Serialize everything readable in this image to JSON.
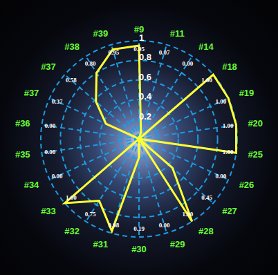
{
  "chart_data": {
    "type": "radar",
    "categories": [
      "#9",
      "#11",
      "#14",
      "#18",
      "#19",
      "#20",
      "#25",
      "#26",
      "#27",
      "#28",
      "#29",
      "#30",
      "#31",
      "#32",
      "#33",
      "#34",
      "#35",
      "#36",
      "#37",
      "#37",
      "#38",
      "#39"
    ],
    "values": [
      0.95,
      0.07,
      0.0,
      1.0,
      1.0,
      1.0,
      1.0,
      0.0,
      0.45,
      1.0,
      0.0,
      0.19,
      0.98,
      0.75,
      1.0,
      0.0,
      0.0,
      0.0,
      0.37,
      0.58,
      0.8,
      0.95
    ],
    "value_labels": [
      "0.95",
      "0.07",
      "0.00",
      "1.00",
      "1.00",
      "1.00",
      "1.00",
      "0.00",
      "0.45",
      "1.00",
      "0.00",
      "0.19",
      "0.98",
      "0.75",
      "1.00",
      "0.00",
      "0.00",
      "0.00",
      "0.37",
      "0.58",
      "0.80",
      "0.95"
    ],
    "color": "#ffff33",
    "ylim": [
      0,
      1
    ],
    "yticks": [
      0.2,
      0.4,
      0.6,
      0.8,
      1
    ],
    "grid": true,
    "data_labels": true
  }
}
